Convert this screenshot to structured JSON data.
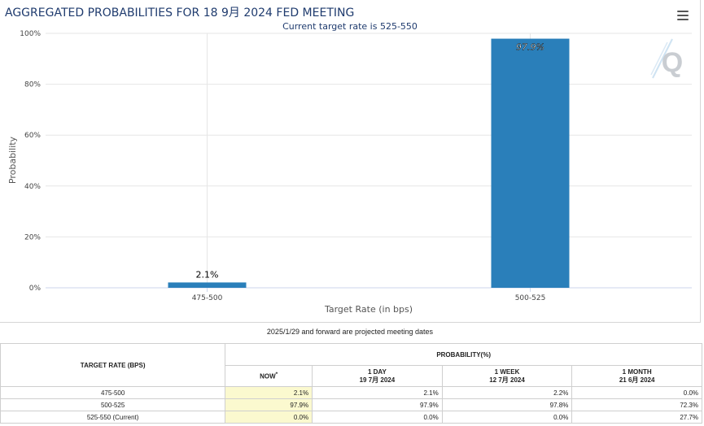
{
  "chart_data": {
    "type": "bar",
    "title": "AGGREGATED PROBABILITIES FOR 18 9月 2024 FED MEETING",
    "subtitle": "Current target rate is 525-550",
    "categories": [
      "475-500",
      "500-525"
    ],
    "values": [
      2.1,
      97.9
    ],
    "data_labels": [
      "2.1%",
      "97.9%"
    ],
    "xlabel": "Target Rate (in bps)",
    "ylabel": "Probability",
    "ylim": [
      0,
      100
    ],
    "yticks": [
      "0%",
      "20%",
      "40%",
      "60%",
      "80%",
      "100%"
    ],
    "grid": true,
    "bar_color": "#2a7fba"
  },
  "note": "2025/1/29 and forward are projected meeting dates",
  "table": {
    "col_target": "TARGET RATE (BPS)",
    "col_probability": "PROBABILITY(%)",
    "subcols": [
      {
        "label": "NOW",
        "marker": "*",
        "date": ""
      },
      {
        "label": "1 DAY",
        "date": "19 7月 2024"
      },
      {
        "label": "1 WEEK",
        "date": "12 7月 2024"
      },
      {
        "label": "1 MONTH",
        "date": "21 6月 2024"
      }
    ],
    "rows": [
      {
        "rate": "475-500",
        "now": "2.1%",
        "day": "2.1%",
        "week": "2.2%",
        "month": "0.0%"
      },
      {
        "rate": "500-525",
        "now": "97.9%",
        "day": "97.9%",
        "week": "97.8%",
        "month": "72.3%"
      },
      {
        "rate": "525-550 (Current)",
        "now": "0.0%",
        "day": "0.0%",
        "week": "0.0%",
        "month": "27.7%"
      }
    ]
  },
  "colors": {
    "title": "#1f3b6e",
    "bar": "#2a7fba",
    "now_cell": "#fbf9cf"
  },
  "icons": {
    "menu": "hamburger-menu-icon",
    "watermark": "q-logo-icon"
  }
}
